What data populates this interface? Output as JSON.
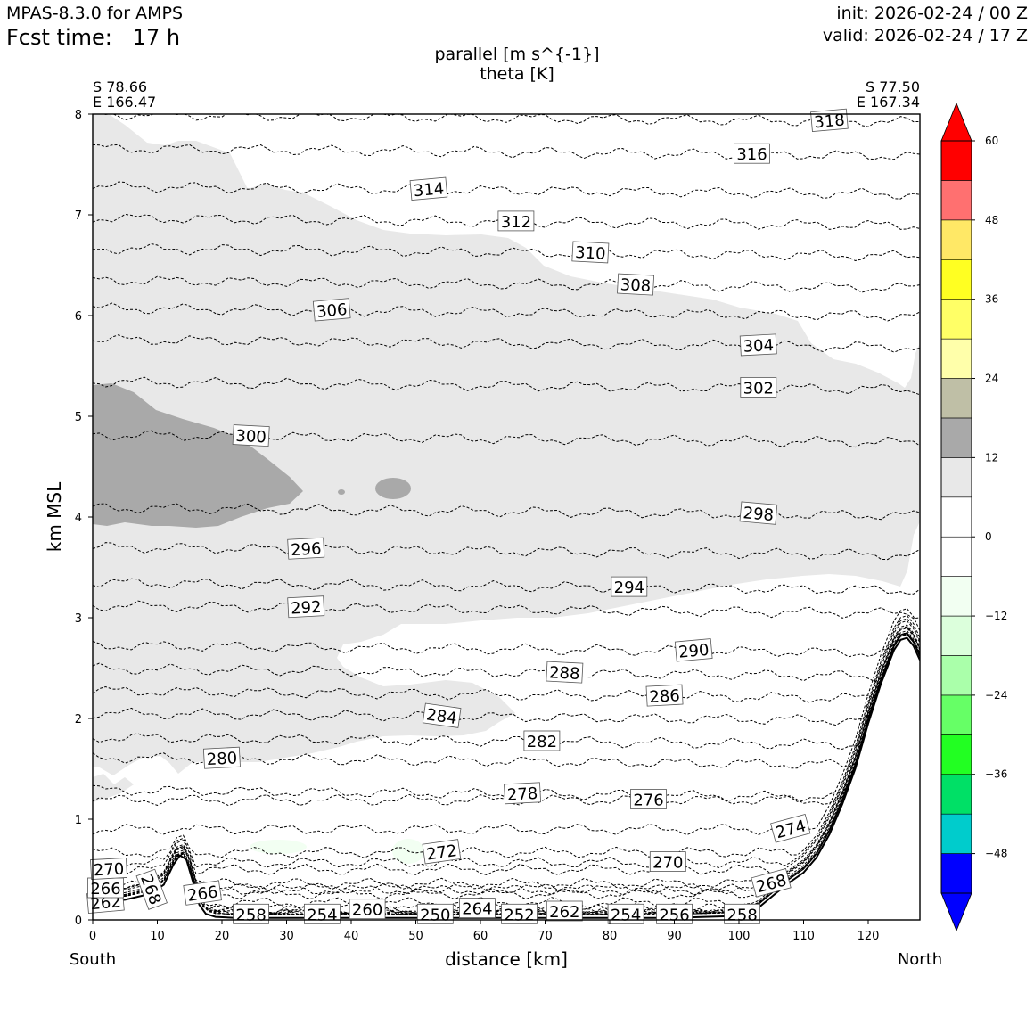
{
  "header": {
    "model": "MPAS-8.3.0 for AMPS",
    "fcst_label": "Fcst time:",
    "fcst_value": "17 h",
    "init": "init: 2026-02-24 / 00 Z",
    "valid": "valid: 2026-02-24 / 17 Z"
  },
  "chart_data": {
    "type": "cross-section",
    "title": "parallel [m s^{-1}]",
    "subtitle": "theta [K]",
    "xlabel": "distance [km]",
    "ylabel": "km MSL",
    "xlim": [
      0,
      128
    ],
    "ylim": [
      0,
      8
    ],
    "xticks": [
      0,
      10,
      20,
      30,
      40,
      50,
      60,
      70,
      80,
      90,
      100,
      110,
      120
    ],
    "yticks": [
      0,
      1,
      2,
      3,
      4,
      5,
      6,
      7,
      8
    ],
    "endpoints": {
      "left": {
        "lat": "S 78.66",
        "lon": "E 166.47",
        "dir": "South"
      },
      "right": {
        "lat": "S 77.50",
        "lon": "E 167.34",
        "dir": "North"
      }
    },
    "terrain": {
      "x": [
        0,
        5,
        9,
        11,
        12.5,
        13.5,
        14.5,
        15.5,
        16.5,
        17.5,
        19,
        22,
        30,
        50,
        70,
        90,
        100,
        103,
        106,
        108,
        110,
        112,
        114,
        116,
        118,
        120,
        122,
        124,
        125,
        126,
        127,
        128
      ],
      "y": [
        0.18,
        0.2,
        0.26,
        0.35,
        0.55,
        0.64,
        0.6,
        0.38,
        0.15,
        0.06,
        0.03,
        0.02,
        0.02,
        0.02,
        0.02,
        0.02,
        0.04,
        0.12,
        0.28,
        0.38,
        0.47,
        0.62,
        0.85,
        1.15,
        1.5,
        1.95,
        2.35,
        2.68,
        2.78,
        2.8,
        2.72,
        2.58
      ]
    },
    "theta_contours": [
      {
        "value": 262,
        "label_x": 2,
        "label_y": 0.17,
        "label_rot": -5
      },
      {
        "value": 266,
        "label_x": 2,
        "label_y": 0.31,
        "label_rot": 0
      },
      {
        "value": 270,
        "label_x": 2.5,
        "label_y": 0.5,
        "label_rot": -3
      },
      {
        "value": 268,
        "label_x": 9,
        "label_y": 0.3,
        "label_rot": 70
      },
      {
        "value": 266,
        "label_x": 17,
        "label_y": 0.26,
        "label_rot": -8
      },
      {
        "value": 258,
        "label_x": 24.5,
        "label_y": 0.05,
        "label_rot": 0
      },
      {
        "value": 254,
        "label_x": 35.5,
        "label_y": 0.05,
        "label_rot": 0
      },
      {
        "value": 260,
        "label_x": 42.5,
        "label_y": 0.1,
        "label_rot": 0
      },
      {
        "value": 250,
        "label_x": 53,
        "label_y": 0.05,
        "label_rot": 0
      },
      {
        "value": 264,
        "label_x": 59.5,
        "label_y": 0.11,
        "label_rot": 0
      },
      {
        "value": 252,
        "label_x": 66,
        "label_y": 0.05,
        "label_rot": 0
      },
      {
        "value": 262,
        "label_x": 73,
        "label_y": 0.08,
        "label_rot": 0
      },
      {
        "value": 254,
        "label_x": 82.5,
        "label_y": 0.05,
        "label_rot": 0
      },
      {
        "value": 256,
        "label_x": 90,
        "label_y": 0.05,
        "label_rot": 0
      },
      {
        "value": 258,
        "label_x": 100.5,
        "label_y": 0.05,
        "label_rot": 0
      },
      {
        "value": 272,
        "label_x": 54,
        "label_y": 0.67,
        "label_rot": -8
      },
      {
        "value": 270,
        "label_x": 89,
        "label_y": 0.57,
        "label_rot": 0
      },
      {
        "value": 268,
        "label_x": 105,
        "label_y": 0.36,
        "label_rot": -15
      },
      {
        "value": 274,
        "label_x": 108,
        "label_y": 0.9,
        "label_rot": -15
      },
      {
        "value": 276,
        "label_x": 86,
        "label_y": 1.19,
        "label_rot": 0
      },
      {
        "value": 278,
        "label_x": 66.5,
        "label_y": 1.25,
        "label_rot": -3
      },
      {
        "value": 280,
        "label_x": 20,
        "label_y": 1.6,
        "label_rot": -3
      },
      {
        "value": 282,
        "label_x": 69.5,
        "label_y": 1.77,
        "label_rot": 0
      },
      {
        "value": 284,
        "label_x": 54,
        "label_y": 2.02,
        "label_rot": 8
      },
      {
        "value": 286,
        "label_x": 88.5,
        "label_y": 2.22,
        "label_rot": -3
      },
      {
        "value": 288,
        "label_x": 73,
        "label_y": 2.45,
        "label_rot": 3
      },
      {
        "value": 290,
        "label_x": 93,
        "label_y": 2.67,
        "label_rot": -5
      },
      {
        "value": 292,
        "label_x": 33,
        "label_y": 3.1,
        "label_rot": -3
      },
      {
        "value": 294,
        "label_x": 83,
        "label_y": 3.3,
        "label_rot": 0
      },
      {
        "value": 296,
        "label_x": 33,
        "label_y": 3.68,
        "label_rot": -3
      },
      {
        "value": 298,
        "label_x": 103,
        "label_y": 4.03,
        "label_rot": 5
      },
      {
        "value": 300,
        "label_x": 24.5,
        "label_y": 4.8,
        "label_rot": 3
      },
      {
        "value": 302,
        "label_x": 103,
        "label_y": 5.28,
        "label_rot": 0
      },
      {
        "value": 304,
        "label_x": 103,
        "label_y": 5.7,
        "label_rot": -3
      },
      {
        "value": 306,
        "label_x": 37,
        "label_y": 6.05,
        "label_rot": -5
      },
      {
        "value": 308,
        "label_x": 84,
        "label_y": 6.3,
        "label_rot": 3
      },
      {
        "value": 310,
        "label_x": 77,
        "label_y": 6.62,
        "label_rot": 3
      },
      {
        "value": 312,
        "label_x": 65.5,
        "label_y": 6.93,
        "label_rot": 0
      },
      {
        "value": 314,
        "label_x": 52,
        "label_y": 7.25,
        "label_rot": -5
      },
      {
        "value": 316,
        "label_x": 102,
        "label_y": 7.6,
        "label_rot": 0
      },
      {
        "value": 318,
        "label_x": 114,
        "label_y": 7.93,
        "label_rot": -5
      }
    ],
    "shading": {
      "colorbar_ticks": [
        60,
        48,
        36,
        24,
        12,
        0,
        -12,
        -24,
        -36,
        -48
      ],
      "levels": [
        -54,
        -48,
        -42,
        -36,
        -30,
        -24,
        -18,
        -12,
        -6,
        0,
        6,
        12,
        18,
        24,
        30,
        36,
        42,
        48,
        54,
        60
      ],
      "colors": [
        "#0000ff",
        "#00cccc",
        "#00e066",
        "#22ff22",
        "#66ff66",
        "#aaffaa",
        "#dcffdc",
        "#f2fff2",
        "#ffffff",
        "#ffffff",
        "#e8e8e8",
        "#a9a9a9",
        "#bfbfa6",
        "#ffffaa",
        "#ffff66",
        "#ffff22",
        "#ffe866",
        "#ff7070",
        "#ff0000"
      ],
      "extend_low_color": "#0000ff",
      "extend_high_color": "#ff0000",
      "region_light_gray": "parallel wind 6-12 m/s over most of the section",
      "region_dark_gray": "parallel wind 12-18 m/s near x=0-32 km, z=3.9-5.3 km"
    },
    "grid": false,
    "legend": "colorbar right"
  }
}
